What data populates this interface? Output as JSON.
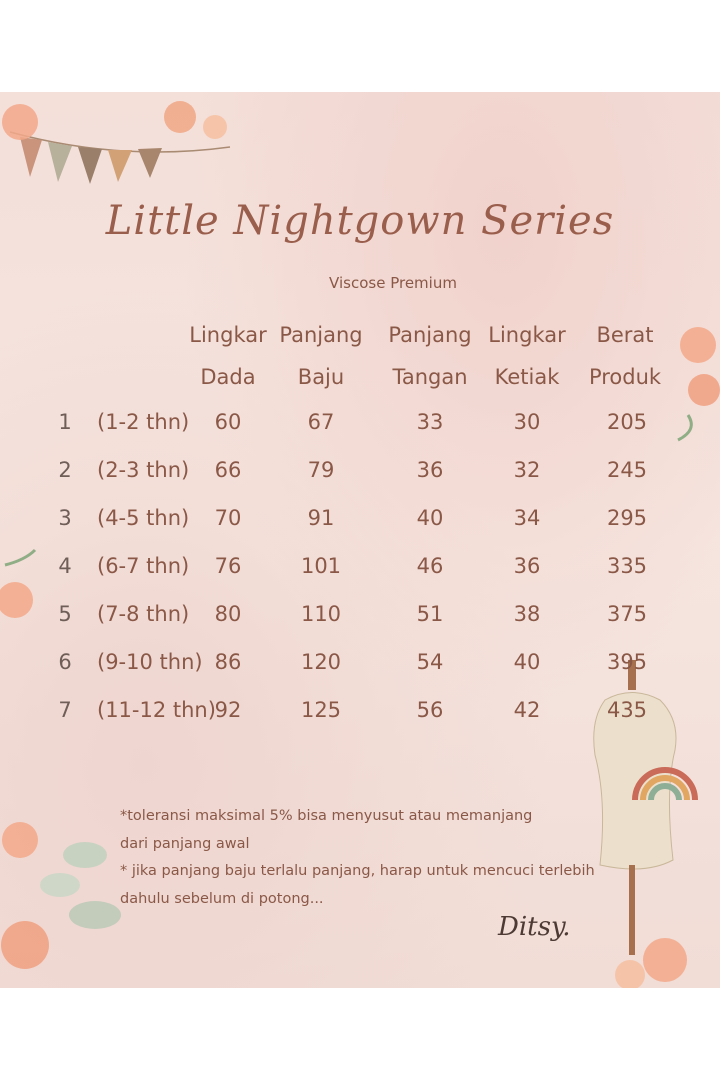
{
  "title": "Little Nightgown Series",
  "subtitle": "Viscose Premium",
  "table": {
    "headers": [
      {
        "line1": "Lingkar",
        "line2": "Dada"
      },
      {
        "line1": "Panjang",
        "line2": "Baju"
      },
      {
        "line1": "Panjang",
        "line2": "Tangan"
      },
      {
        "line1": "Lingkar",
        "line2": "Ketiak"
      },
      {
        "line1": "Berat",
        "line2": "Produk"
      }
    ],
    "rows": [
      {
        "no": "1",
        "age": "(1-2 thn)",
        "values": [
          "60",
          "67",
          "33",
          "30",
          "205"
        ]
      },
      {
        "no": "2",
        "age": "(2-3 thn)",
        "values": [
          "66",
          "79",
          "36",
          "32",
          "245"
        ]
      },
      {
        "no": "3",
        "age": "(4-5 thn)",
        "values": [
          "70",
          "91",
          "40",
          "34",
          "295"
        ]
      },
      {
        "no": "4",
        "age": "(6-7 thn)",
        "values": [
          "76",
          "101",
          "46",
          "36",
          "335"
        ]
      },
      {
        "no": "5",
        "age": "(7-8 thn)",
        "values": [
          "80",
          "110",
          "51",
          "38",
          "375"
        ]
      },
      {
        "no": "6",
        "age": "(9-10 thn)",
        "values": [
          "86",
          "120",
          "54",
          "40",
          "395"
        ]
      },
      {
        "no": "7",
        "age": "(11-12 thn)",
        "values": [
          "92",
          "125",
          "56",
          "42",
          "435"
        ]
      }
    ]
  },
  "notes": [
    "*toleransi  maksimal 5% bisa menyusut atau memanjang",
    "dari panjang awal",
    "* jika panjang baju terlalu panjang, harap  untuk mencuci terlebih",
    "dahulu sebelum di potong..."
  ],
  "brand_signature": "Ditsy.",
  "colors": {
    "background": "#f4dfd9",
    "text": "#8a5847",
    "title": "#9a5e4c"
  },
  "decorations": [
    "flower-bunting",
    "flowers",
    "dress-form-mannequin",
    "rainbow-macrame",
    "cowrie-shells"
  ]
}
